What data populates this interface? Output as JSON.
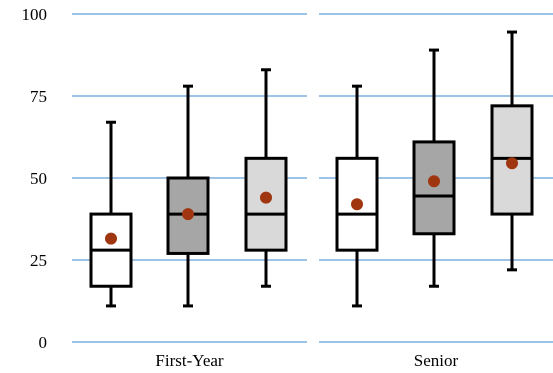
{
  "chart_data": {
    "type": "boxplot",
    "title": "",
    "xlabel": "",
    "ylabel": "",
    "ylim": [
      0,
      100
    ],
    "y_ticks": [
      0,
      25,
      50,
      75,
      100
    ],
    "grid": true,
    "legend": "none",
    "groups": [
      {
        "label": "First-Year",
        "boxes": [
          {
            "min": 11,
            "q1": 17,
            "median": 28,
            "q3": 39,
            "max": 67,
            "mean": 31.5,
            "fill": "#ffffff"
          },
          {
            "min": 11,
            "q1": 27,
            "median": 39,
            "q3": 50,
            "max": 78,
            "mean": 39,
            "fill": "#a6a6a6"
          },
          {
            "min": 17,
            "q1": 28,
            "median": 39,
            "q3": 56,
            "max": 83,
            "mean": 44,
            "fill": "#d9d9d9"
          }
        ]
      },
      {
        "label": "Senior",
        "boxes": [
          {
            "min": 11,
            "q1": 28,
            "median": 39,
            "q3": 56,
            "max": 78,
            "mean": 42,
            "fill": "#ffffff"
          },
          {
            "min": 17,
            "q1": 33,
            "median": 44.5,
            "q3": 61,
            "max": 89,
            "mean": 49,
            "fill": "#a6a6a6"
          },
          {
            "min": 22,
            "q1": 39,
            "median": 56,
            "q3": 72,
            "max": 94.5,
            "mean": 54.5,
            "fill": "#d9d9d9"
          }
        ]
      }
    ],
    "colors": {
      "gridline": "#9dc3e6",
      "mean_marker": "#a0360f",
      "stroke": "#000000"
    }
  }
}
